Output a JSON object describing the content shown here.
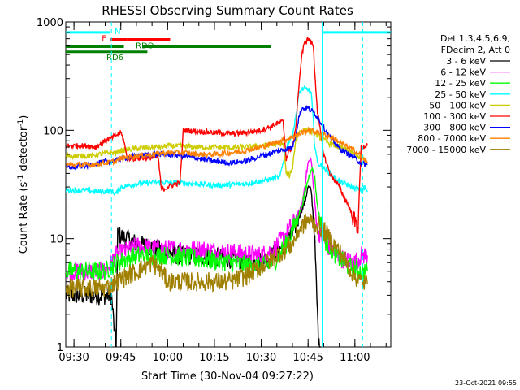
{
  "chart_data": {
    "type": "line",
    "title": "RHESSI Observing Summary Count Rates",
    "xlabel": "Start Time (30-Nov-04 09:27:22)",
    "ylabel_main": "Count Rate (s",
    "ylabel_sup1": "-1",
    "ylabel_mid": " detector",
    "ylabel_sup2": "-1",
    "ylabel_end": ")",
    "x_range_minutes": [
      567.37,
      671.5
    ],
    "ylim": [
      1,
      1000
    ],
    "yscale": "log",
    "x_ticks": [
      {
        "label": "09:30",
        "minute": 570
      },
      {
        "label": "09:45",
        "minute": 585
      },
      {
        "label": "10:00",
        "minute": 600
      },
      {
        "label": "10:15",
        "minute": 615
      },
      {
        "label": "10:30",
        "minute": 630
      },
      {
        "label": "10:45",
        "minute": 645
      },
      {
        "label": "11:00",
        "minute": 660
      }
    ],
    "y_ticks": [
      {
        "label": "1",
        "value": 1
      },
      {
        "label": "10",
        "value": 10
      },
      {
        "label": "100",
        "value": 100
      },
      {
        "label": "1000",
        "value": 1000
      }
    ],
    "legend_header": [
      "Det 1,3,4,5,6,9,",
      "FDecim 2, Att 0"
    ],
    "series": [
      {
        "name": "3 - 6 keV",
        "color": "#000000",
        "points": [
          [
            567.5,
            3
          ],
          [
            582,
            3
          ],
          [
            583.5,
            0.9
          ],
          [
            584,
            11
          ],
          [
            590,
            9
          ],
          [
            597,
            8
          ],
          [
            603,
            7
          ],
          [
            612,
            7
          ],
          [
            620,
            6.5
          ],
          [
            628,
            6
          ],
          [
            632,
            6.5
          ],
          [
            636,
            8
          ],
          [
            640,
            11
          ],
          [
            644,
            22
          ],
          [
            645,
            30
          ],
          [
            646,
            28
          ],
          [
            647,
            12
          ],
          [
            648,
            2
          ],
          [
            649,
            0.5
          ]
        ]
      },
      {
        "name": "6 - 12 keV",
        "color": "#ff00ff",
        "points": [
          [
            567.5,
            5
          ],
          [
            580,
            5
          ],
          [
            583.5,
            7
          ],
          [
            590,
            8.5
          ],
          [
            600,
            8
          ],
          [
            610,
            8
          ],
          [
            620,
            7.5
          ],
          [
            630,
            7
          ],
          [
            634,
            8
          ],
          [
            638,
            11
          ],
          [
            641,
            15
          ],
          [
            643,
            20
          ],
          [
            645,
            50
          ],
          [
            646,
            55
          ],
          [
            646.7,
            30
          ],
          [
            648,
            12
          ],
          [
            652,
            8
          ],
          [
            656,
            6.5
          ],
          [
            660,
            6
          ],
          [
            662,
            7
          ],
          [
            664,
            7
          ]
        ]
      },
      {
        "name": "12 - 25 keV",
        "color": "#00ff00",
        "points": [
          [
            567.5,
            5
          ],
          [
            580,
            5
          ],
          [
            583.5,
            6
          ],
          [
            590,
            7
          ],
          [
            600,
            7
          ],
          [
            610,
            6.5
          ],
          [
            620,
            6
          ],
          [
            630,
            5.5
          ],
          [
            634,
            6
          ],
          [
            638,
            9
          ],
          [
            641,
            14
          ],
          [
            643,
            20
          ],
          [
            645,
            35
          ],
          [
            646,
            45
          ],
          [
            647,
            40
          ],
          [
            648,
            20
          ],
          [
            650,
            10
          ],
          [
            654,
            7
          ],
          [
            658,
            5.5
          ],
          [
            662,
            5
          ],
          [
            664,
            5
          ]
        ]
      },
      {
        "name": "25 - 50 keV",
        "color": "#00ffff",
        "points": [
          [
            567.5,
            28
          ],
          [
            574,
            28
          ],
          [
            578,
            27
          ],
          [
            582,
            27.5
          ],
          [
            583.5,
            26
          ],
          [
            585,
            30
          ],
          [
            590,
            32
          ],
          [
            595,
            33
          ],
          [
            600,
            33
          ],
          [
            610,
            32
          ],
          [
            615,
            31
          ],
          [
            625,
            32
          ],
          [
            630,
            34
          ],
          [
            636,
            37
          ],
          [
            638,
            70
          ],
          [
            640,
            90
          ],
          [
            641,
            130
          ],
          [
            642,
            210
          ],
          [
            643,
            240
          ],
          [
            645,
            240
          ],
          [
            646,
            220
          ],
          [
            646.7,
            120
          ],
          [
            647,
            80
          ],
          [
            648,
            50
          ],
          [
            652,
            40
          ],
          [
            655,
            34
          ],
          [
            659,
            30
          ],
          [
            662,
            28
          ],
          [
            663,
            30
          ],
          [
            664,
            27
          ]
        ]
      },
      {
        "name": "50 - 100 keV",
        "color": "#cccc00",
        "points": [
          [
            567.5,
            58
          ],
          [
            575,
            58
          ],
          [
            578,
            60
          ],
          [
            581,
            62
          ],
          [
            583.5,
            62
          ],
          [
            585,
            65
          ],
          [
            590,
            68
          ],
          [
            595,
            70
          ],
          [
            598,
            70
          ],
          [
            600,
            72
          ],
          [
            605,
            71
          ],
          [
            610,
            70
          ],
          [
            615,
            70
          ],
          [
            620,
            69
          ],
          [
            625,
            70
          ],
          [
            630,
            72
          ],
          [
            635,
            74
          ],
          [
            637,
            76
          ],
          [
            638,
            40
          ],
          [
            639,
            38
          ],
          [
            640,
            45
          ],
          [
            641,
            80
          ],
          [
            642,
            95
          ],
          [
            643,
            100
          ],
          [
            645,
            100
          ],
          [
            647,
            95
          ],
          [
            649,
            85
          ],
          [
            652,
            75
          ],
          [
            655,
            70
          ],
          [
            658,
            65
          ],
          [
            660,
            60
          ],
          [
            662,
            55
          ],
          [
            663,
            52
          ],
          [
            664,
            50
          ]
        ]
      },
      {
        "name": "100 - 300 keV",
        "color": "#ff0000",
        "points": [
          [
            567.5,
            72
          ],
          [
            574,
            72
          ],
          [
            577,
            70
          ],
          [
            580,
            80
          ],
          [
            582,
            85
          ],
          [
            583.5,
            90
          ],
          [
            585,
            95
          ],
          [
            586,
            80
          ],
          [
            587,
            55
          ],
          [
            590,
            55
          ],
          [
            595,
            56
          ],
          [
            597,
            56
          ],
          [
            598,
            28
          ],
          [
            600,
            30
          ],
          [
            604,
            33
          ],
          [
            605,
            100
          ],
          [
            610,
            98
          ],
          [
            615,
            95
          ],
          [
            620,
            93
          ],
          [
            625,
            95
          ],
          [
            630,
            100
          ],
          [
            635,
            115
          ],
          [
            637,
            120
          ],
          [
            638,
            55
          ],
          [
            639,
            65
          ],
          [
            640,
            70
          ],
          [
            641,
            100
          ],
          [
            642,
            250
          ],
          [
            643,
            500
          ],
          [
            644,
            650
          ],
          [
            645,
            700
          ],
          [
            646,
            650
          ],
          [
            646.7,
            600
          ],
          [
            647,
            400
          ],
          [
            648,
            150
          ],
          [
            650,
            60
          ],
          [
            652,
            40
          ],
          [
            655,
            30
          ],
          [
            658,
            20
          ],
          [
            660,
            14
          ],
          [
            661,
            13
          ],
          [
            662,
            70
          ],
          [
            664,
            72
          ]
        ]
      },
      {
        "name": "300 - 800 keV",
        "color": "#0000ff",
        "points": [
          [
            567.5,
            45
          ],
          [
            574,
            47
          ],
          [
            578,
            50
          ],
          [
            581,
            52
          ],
          [
            583.5,
            52
          ],
          [
            585,
            55
          ],
          [
            590,
            58
          ],
          [
            595,
            60
          ],
          [
            598,
            60
          ],
          [
            600,
            60
          ],
          [
            605,
            58
          ],
          [
            610,
            55
          ],
          [
            615,
            52
          ],
          [
            620,
            50
          ],
          [
            625,
            52
          ],
          [
            630,
            58
          ],
          [
            635,
            64
          ],
          [
            637,
            66
          ],
          [
            640,
            70
          ],
          [
            641,
            90
          ],
          [
            642,
            130
          ],
          [
            643,
            160
          ],
          [
            645,
            160
          ],
          [
            647,
            145
          ],
          [
            649,
            120
          ],
          [
            651,
            95
          ],
          [
            653,
            80
          ],
          [
            655,
            68
          ],
          [
            658,
            60
          ],
          [
            660,
            55
          ],
          [
            662,
            50
          ],
          [
            664,
            48
          ]
        ]
      },
      {
        "name": "800 - 7000 keV",
        "color": "#ff8000",
        "points": [
          [
            567.5,
            48
          ],
          [
            575,
            48
          ],
          [
            580,
            50
          ],
          [
            583.5,
            52
          ],
          [
            585,
            55
          ],
          [
            590,
            58
          ],
          [
            595,
            60
          ],
          [
            600,
            62
          ],
          [
            605,
            62
          ],
          [
            610,
            60
          ],
          [
            615,
            60
          ],
          [
            620,
            62
          ],
          [
            625,
            65
          ],
          [
            630,
            70
          ],
          [
            635,
            78
          ],
          [
            638,
            82
          ],
          [
            641,
            90
          ],
          [
            643,
            95
          ],
          [
            645,
            100
          ],
          [
            647,
            98
          ],
          [
            650,
            92
          ],
          [
            653,
            85
          ],
          [
            656,
            75
          ],
          [
            660,
            65
          ],
          [
            662,
            58
          ],
          [
            664,
            50
          ]
        ]
      },
      {
        "name": "7000 - 15000 keV",
        "color": "#a08000",
        "points": [
          [
            567.5,
            3.5
          ],
          [
            580,
            3.5
          ],
          [
            583.5,
            4
          ],
          [
            590,
            5
          ],
          [
            595,
            6
          ],
          [
            598,
            5
          ],
          [
            600,
            4
          ],
          [
            605,
            4
          ],
          [
            610,
            4
          ],
          [
            615,
            4
          ],
          [
            620,
            4
          ],
          [
            625,
            4.5
          ],
          [
            630,
            5.5
          ],
          [
            635,
            7
          ],
          [
            638,
            8
          ],
          [
            640,
            9
          ],
          [
            642,
            12
          ],
          [
            645,
            15
          ],
          [
            647,
            14
          ],
          [
            650,
            12
          ],
          [
            653,
            9
          ],
          [
            656,
            7
          ],
          [
            658,
            5.5
          ],
          [
            660,
            4.5
          ],
          [
            662,
            4
          ],
          [
            664,
            3.8
          ]
        ]
      }
    ],
    "state_bars": [
      {
        "label": "N",
        "color": "#00ffff",
        "segments": [
          [
            567.37,
            581.5
          ],
          [
            649.5,
            671.5
          ]
        ],
        "value_pos": 800
      },
      {
        "label": "F",
        "color": "#ff0000",
        "segments": [
          [
            581.5,
            587
          ],
          [
            587,
            600.8
          ]
        ],
        "value_pos": 690
      },
      {
        "label": "RDO",
        "color": "#008000",
        "segments": [
          [
            567.37,
            586
          ],
          [
            592,
            633
          ]
        ],
        "value_pos": 590
      },
      {
        "label": "RD6",
        "color": "#008000",
        "segments": [
          [
            567.37,
            593.5
          ]
        ],
        "value_pos": 530
      }
    ],
    "vlines_dashed": [
      {
        "minute": 582,
        "color": "#00ffff"
      },
      {
        "minute": 662.5,
        "color": "#00ffff"
      }
    ],
    "vlines_solid": [
      {
        "minute": 649.5,
        "color": "#00ffff"
      }
    ],
    "timestamp": "23-Oct-2021 09:55"
  }
}
